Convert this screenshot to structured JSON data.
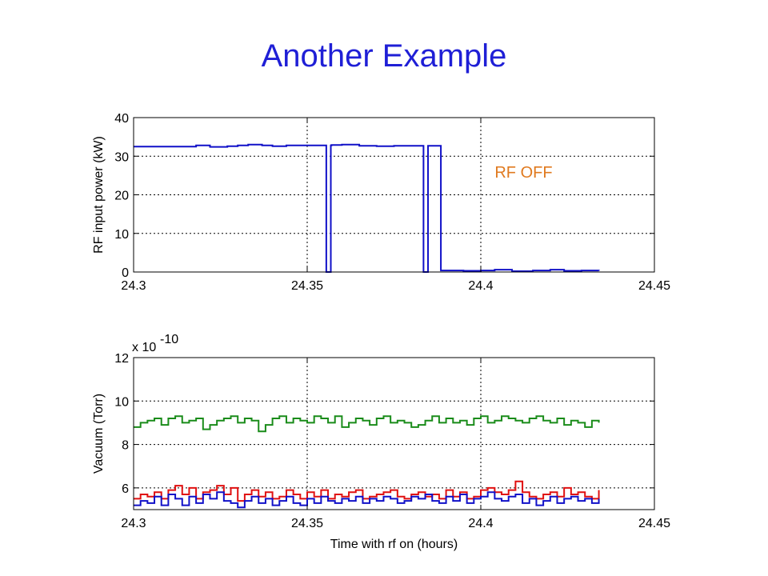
{
  "slide": {
    "title": "Another Example"
  },
  "chart_data": [
    {
      "type": "line",
      "title": "",
      "xlabel": "",
      "ylabel": "RF input power (kW)",
      "xlim": [
        24.3,
        24.45
      ],
      "ylim": [
        0,
        40
      ],
      "xticks": [
        24.3,
        24.35,
        24.4,
        24.45
      ],
      "xtick_labels": [
        "24.3",
        "24.35",
        "24.4",
        "24.45"
      ],
      "yticks": [
        0,
        10,
        20,
        30,
        40
      ],
      "ytick_labels": [
        "0",
        "10",
        "20",
        "30",
        "40"
      ],
      "grid": "dotted at interior ticks",
      "annotation": {
        "text": "RF OFF",
        "x": 24.404,
        "y": 24.5,
        "color": "#e07a1f"
      },
      "series": [
        {
          "color": "#1010c8",
          "step": true,
          "x": [
            24.3,
            24.315,
            24.318,
            24.322,
            24.327,
            24.33,
            24.333,
            24.337,
            24.34,
            24.344,
            24.3553,
            24.3555,
            24.3568,
            24.357,
            24.36,
            24.365,
            24.37,
            24.375,
            24.3833,
            24.3835,
            24.3848,
            24.385,
            24.3885,
            24.389,
            24.395,
            24.4,
            24.404,
            24.409,
            24.415,
            24.42,
            24.424,
            24.429,
            24.434
          ],
          "y": [
            32.5,
            32.5,
            32.8,
            32.4,
            32.6,
            32.8,
            33.0,
            32.8,
            32.6,
            32.8,
            32.8,
            0,
            32.8,
            32.9,
            33.0,
            32.7,
            32.6,
            32.7,
            32.7,
            0,
            32.7,
            32.7,
            0.4,
            0.4,
            0.3,
            0.4,
            0.6,
            0.2,
            0.4,
            0.6,
            0.3,
            0.4,
            0.3
          ]
        }
      ]
    },
    {
      "type": "line",
      "title": "",
      "xlabel": "Time with rf on (hours)",
      "ylabel": "Vacuum (Torr)",
      "y_multiplier": "x 10",
      "y_multiplier_exp": "-10",
      "xlim": [
        24.3,
        24.45
      ],
      "ylim": [
        5,
        12
      ],
      "xticks": [
        24.3,
        24.35,
        24.4,
        24.45
      ],
      "xtick_labels": [
        "24.3",
        "24.35",
        "24.4",
        "24.45"
      ],
      "yticks": [
        6,
        8,
        10,
        12
      ],
      "ytick_labels": [
        "6",
        "8",
        "10",
        "12"
      ],
      "grid": "dotted at interior ticks",
      "series": [
        {
          "color": "#1a8c1a",
          "step": true,
          "x": [
            24.3,
            24.302,
            24.304,
            24.306,
            24.308,
            24.31,
            24.312,
            24.314,
            24.316,
            24.318,
            24.32,
            24.322,
            24.324,
            24.326,
            24.328,
            24.33,
            24.332,
            24.334,
            24.336,
            24.338,
            24.34,
            24.342,
            24.344,
            24.346,
            24.348,
            24.35,
            24.352,
            24.354,
            24.356,
            24.358,
            24.36,
            24.362,
            24.364,
            24.366,
            24.368,
            24.37,
            24.372,
            24.374,
            24.376,
            24.378,
            24.38,
            24.382,
            24.384,
            24.386,
            24.388,
            24.39,
            24.392,
            24.394,
            24.396,
            24.398,
            24.4,
            24.402,
            24.404,
            24.406,
            24.408,
            24.41,
            24.412,
            24.414,
            24.416,
            24.418,
            24.42,
            24.422,
            24.424,
            24.426,
            24.428,
            24.43,
            24.432,
            24.434
          ],
          "y": [
            8.8,
            9.0,
            9.1,
            9.2,
            8.9,
            9.2,
            9.3,
            9.0,
            9.1,
            9.2,
            8.7,
            8.9,
            9.1,
            9.2,
            9.3,
            9.0,
            9.2,
            9.1,
            8.6,
            8.9,
            9.2,
            9.3,
            9.0,
            9.2,
            9.1,
            9.0,
            9.3,
            9.2,
            9.0,
            9.3,
            8.8,
            9.0,
            9.2,
            9.1,
            8.9,
            9.2,
            9.3,
            9.0,
            9.1,
            9.0,
            8.8,
            8.9,
            9.1,
            9.3,
            9.0,
            9.2,
            9.0,
            9.1,
            8.9,
            9.2,
            9.3,
            9.0,
            9.1,
            9.3,
            9.2,
            9.1,
            9.0,
            9.2,
            9.3,
            9.1,
            9.0,
            9.2,
            8.9,
            9.1,
            9.0,
            8.8,
            9.1,
            9.0
          ]
        },
        {
          "color": "#e01010",
          "step": true,
          "x": [
            24.3,
            24.302,
            24.304,
            24.306,
            24.308,
            24.31,
            24.312,
            24.314,
            24.316,
            24.318,
            24.32,
            24.322,
            24.324,
            24.326,
            24.328,
            24.33,
            24.332,
            24.334,
            24.336,
            24.338,
            24.34,
            24.342,
            24.344,
            24.346,
            24.348,
            24.35,
            24.352,
            24.354,
            24.356,
            24.358,
            24.36,
            24.362,
            24.364,
            24.366,
            24.368,
            24.37,
            24.372,
            24.374,
            24.376,
            24.378,
            24.38,
            24.382,
            24.384,
            24.386,
            24.388,
            24.39,
            24.392,
            24.394,
            24.396,
            24.398,
            24.4,
            24.402,
            24.404,
            24.406,
            24.408,
            24.41,
            24.412,
            24.414,
            24.416,
            24.418,
            24.42,
            24.422,
            24.424,
            24.426,
            24.428,
            24.43,
            24.432,
            24.434
          ],
          "y": [
            5.5,
            5.7,
            5.6,
            5.8,
            5.5,
            5.9,
            6.1,
            5.7,
            6.0,
            5.5,
            5.8,
            5.9,
            6.1,
            5.7,
            6.0,
            5.4,
            5.7,
            5.9,
            5.6,
            5.8,
            5.5,
            5.6,
            5.9,
            5.7,
            5.5,
            5.8,
            5.6,
            5.9,
            5.5,
            5.7,
            5.6,
            5.8,
            5.9,
            5.5,
            5.6,
            5.7,
            5.8,
            5.9,
            5.6,
            5.5,
            5.7,
            5.8,
            5.6,
            5.7,
            5.5,
            5.9,
            5.6,
            5.8,
            5.5,
            5.6,
            5.9,
            6.0,
            5.8,
            5.7,
            5.9,
            6.3,
            5.8,
            5.6,
            5.5,
            5.7,
            5.8,
            5.6,
            6.0,
            5.7,
            5.8,
            5.6,
            5.5,
            5.9
          ]
        },
        {
          "color": "#1010c8",
          "step": true,
          "x": [
            24.3,
            24.302,
            24.304,
            24.306,
            24.308,
            24.31,
            24.312,
            24.314,
            24.316,
            24.318,
            24.32,
            24.322,
            24.324,
            24.326,
            24.328,
            24.33,
            24.332,
            24.334,
            24.336,
            24.338,
            24.34,
            24.342,
            24.344,
            24.346,
            24.348,
            24.35,
            24.352,
            24.354,
            24.356,
            24.358,
            24.36,
            24.362,
            24.364,
            24.366,
            24.368,
            24.37,
            24.372,
            24.374,
            24.376,
            24.378,
            24.38,
            24.382,
            24.384,
            24.386,
            24.388,
            24.39,
            24.392,
            24.394,
            24.396,
            24.398,
            24.4,
            24.402,
            24.404,
            24.406,
            24.408,
            24.41,
            24.412,
            24.414,
            24.416,
            24.418,
            24.42,
            24.422,
            24.424,
            24.426,
            24.428,
            24.43,
            24.432,
            24.434
          ],
          "y": [
            5.2,
            5.4,
            5.3,
            5.6,
            5.2,
            5.7,
            5.5,
            5.2,
            5.6,
            5.3,
            5.7,
            5.5,
            5.8,
            5.4,
            5.3,
            5.1,
            5.4,
            5.6,
            5.3,
            5.5,
            5.2,
            5.4,
            5.6,
            5.3,
            5.2,
            5.5,
            5.3,
            5.6,
            5.4,
            5.3,
            5.5,
            5.4,
            5.6,
            5.3,
            5.5,
            5.4,
            5.6,
            5.5,
            5.3,
            5.4,
            5.6,
            5.5,
            5.7,
            5.4,
            5.3,
            5.6,
            5.4,
            5.7,
            5.3,
            5.5,
            5.6,
            5.8,
            5.5,
            5.4,
            5.6,
            5.7,
            5.3,
            5.5,
            5.2,
            5.4,
            5.6,
            5.3,
            5.5,
            5.6,
            5.4,
            5.5,
            5.3,
            5.5
          ]
        }
      ]
    }
  ]
}
